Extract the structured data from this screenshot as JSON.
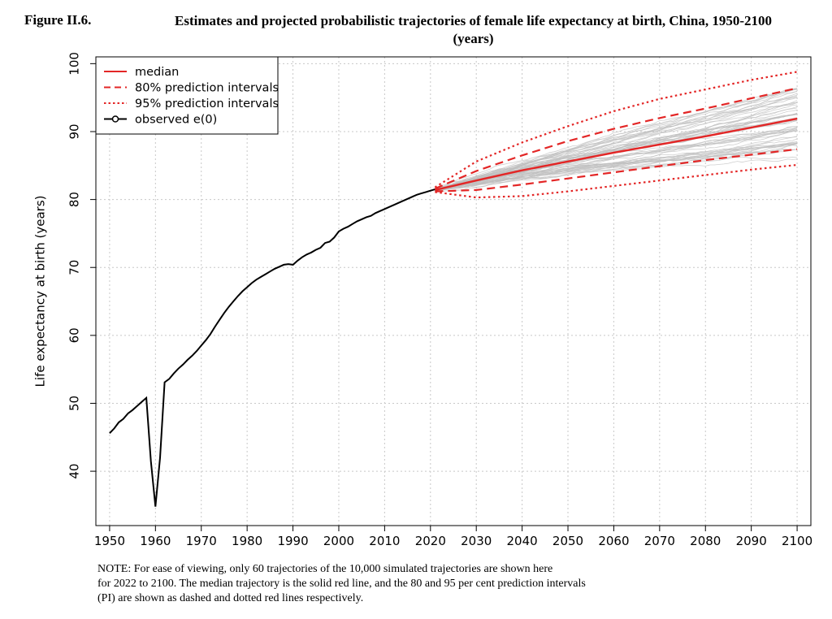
{
  "figure": {
    "number": "Figure II.6.",
    "title_line1": "Estimates and projected probabilistic trajectories of female life expectancy at birth, China, 1950-2100",
    "title_line2": "(years)"
  },
  "note": {
    "line1": "NOTE: For ease of viewing, only 60 trajectories of the 10,000 simulated trajectories are shown here",
    "line2": "for 2022 to 2100. The median trajectory is the solid red line, and the 80 and 95 per cent prediction intervals",
    "line3": "(PI) are shown as dashed and dotted red lines respectively."
  },
  "colors": {
    "observed": "#000000",
    "median": "#e32626",
    "intervals": "#e32626",
    "trajectories": "#bfbfbf",
    "grid": "#c8c8c8"
  },
  "chart_data": {
    "type": "line",
    "title": "",
    "xlabel": "",
    "ylabel": "Life expectancy at birth (years)",
    "xlim": [
      1947,
      2103
    ],
    "ylim": [
      32,
      101
    ],
    "x_ticks": [
      1950,
      1960,
      1970,
      1980,
      1990,
      2000,
      2010,
      2020,
      2030,
      2040,
      2050,
      2060,
      2070,
      2080,
      2090,
      2100
    ],
    "y_ticks": [
      40,
      50,
      60,
      70,
      80,
      90,
      100
    ],
    "grid": true,
    "legend": {
      "placement": "top-left",
      "entries": [
        {
          "label": "median",
          "style": "solid"
        },
        {
          "label": "80% prediction intervals",
          "style": "dashed"
        },
        {
          "label": "95% prediction intervals",
          "style": "dotted"
        },
        {
          "label": "observed e(0)",
          "style": "line-marker"
        }
      ]
    },
    "observed": {
      "name": "observed e(0)",
      "x": [
        1950,
        1951,
        1952,
        1953,
        1954,
        1955,
        1956,
        1957,
        1958,
        1959,
        1960,
        1961,
        1962,
        1963,
        1964,
        1965,
        1966,
        1967,
        1968,
        1969,
        1970,
        1971,
        1972,
        1973,
        1974,
        1975,
        1976,
        1977,
        1978,
        1979,
        1980,
        1981,
        1982,
        1983,
        1984,
        1985,
        1986,
        1987,
        1988,
        1989,
        1990,
        1991,
        1992,
        1993,
        1994,
        1995,
        1996,
        1997,
        1998,
        1999,
        2000,
        2001,
        2002,
        2003,
        2004,
        2005,
        2006,
        2007,
        2008,
        2009,
        2010,
        2011,
        2012,
        2013,
        2014,
        2015,
        2016,
        2017,
        2018,
        2019,
        2020,
        2021
      ],
      "y": [
        45.6,
        46.3,
        47.2,
        47.7,
        48.5,
        49.0,
        49.6,
        50.2,
        50.8,
        41.5,
        34.8,
        42.0,
        53.1,
        53.6,
        54.4,
        55.1,
        55.7,
        56.4,
        57.0,
        57.7,
        58.5,
        59.3,
        60.2,
        61.3,
        62.3,
        63.3,
        64.2,
        65.0,
        65.8,
        66.5,
        67.1,
        67.7,
        68.2,
        68.6,
        69.0,
        69.4,
        69.8,
        70.1,
        70.4,
        70.5,
        70.4,
        71.0,
        71.5,
        71.9,
        72.2,
        72.6,
        72.9,
        73.6,
        73.8,
        74.4,
        75.3,
        75.7,
        76.0,
        76.4,
        76.8,
        77.1,
        77.4,
        77.6,
        78.0,
        78.3,
        78.6,
        78.9,
        79.2,
        79.5,
        79.8,
        80.1,
        80.4,
        80.7,
        80.9,
        81.1,
        81.3,
        81.5
      ]
    },
    "series": [
      {
        "name": "median",
        "style": "solid",
        "x": [
          2021,
          2030,
          2040,
          2050,
          2060,
          2070,
          2080,
          2090,
          2100
        ],
        "y": [
          81.4,
          82.8,
          84.3,
          85.6,
          86.9,
          88.1,
          89.3,
          90.6,
          91.9
        ]
      },
      {
        "name": "80% prediction intervals",
        "style": "dashed",
        "x": [
          2021,
          2030,
          2040,
          2050,
          2060,
          2070,
          2080,
          2090,
          2100
        ],
        "y": [
          81.6,
          84.2,
          86.5,
          88.6,
          90.4,
          92.0,
          93.4,
          94.9,
          96.4
        ]
      },
      {
        "name": "80% prediction intervals",
        "style": "dashed",
        "x": [
          2021,
          2030,
          2040,
          2050,
          2060,
          2070,
          2080,
          2090,
          2100
        ],
        "y": [
          81.2,
          81.4,
          82.2,
          83.1,
          84.0,
          84.9,
          85.8,
          86.6,
          87.4
        ]
      },
      {
        "name": "95% prediction intervals",
        "style": "dotted",
        "x": [
          2021,
          2030,
          2040,
          2050,
          2060,
          2070,
          2080,
          2090,
          2100
        ],
        "y": [
          81.8,
          85.6,
          88.4,
          90.8,
          93.0,
          94.8,
          96.2,
          97.6,
          98.8
        ]
      },
      {
        "name": "95% prediction intervals",
        "style": "dotted",
        "x": [
          2021,
          2030,
          2040,
          2050,
          2060,
          2070,
          2080,
          2090,
          2100
        ],
        "y": [
          81.1,
          80.3,
          80.5,
          81.2,
          82.0,
          82.8,
          83.6,
          84.4,
          85.1
        ]
      }
    ],
    "simulated_trajectories": {
      "count_shown": 60,
      "x_range": [
        2022,
        2100
      ],
      "start_value": 81.4,
      "end_range": [
        85,
        99
      ]
    }
  }
}
